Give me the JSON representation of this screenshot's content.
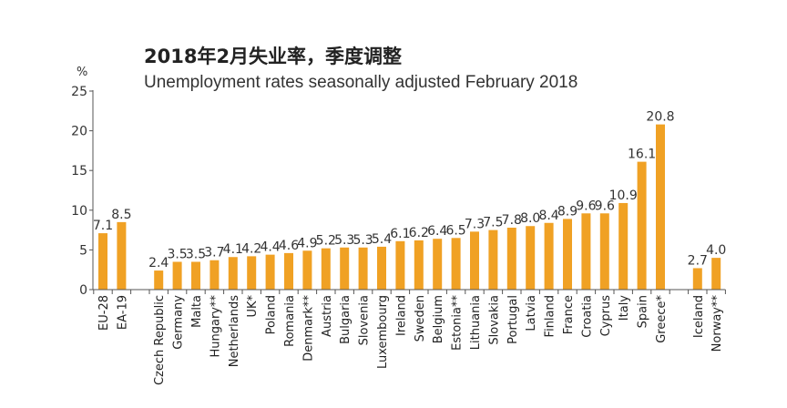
{
  "chart_data": {
    "type": "bar",
    "title": "2018年2月失业率，季度调整",
    "subtitle": "Unemployment rates seasonally adjusted February 2018",
    "ylabel": "%",
    "ylim": [
      0,
      25
    ],
    "yticks": [
      0,
      5,
      10,
      15,
      20,
      25
    ],
    "grid": false,
    "bar_color": "#F0A124",
    "groups": [
      {
        "categories": [
          "EU-28",
          "EA-19"
        ],
        "values": [
          7.1,
          8.5
        ],
        "labels": [
          "7.1",
          "8.5"
        ]
      },
      {
        "categories": [
          "Czech Republic",
          "Germany",
          "Malta",
          "Hungary**",
          "Netherlands",
          "UK*",
          "Poland",
          "Romania",
          "Denmark**",
          "Austria",
          "Bulgaria",
          "Slovenia",
          "Luxembourg",
          "Ireland",
          "Sweden",
          "Belgium",
          "Estonia**",
          "Lithuania",
          "Slovakia",
          "Portugal",
          "Latvia",
          "Finland",
          "France",
          "Croatia",
          "Cyprus",
          "Italy",
          "Spain",
          "Greece*"
        ],
        "values": [
          2.4,
          3.5,
          3.5,
          3.7,
          4.1,
          4.2,
          4.4,
          4.6,
          4.9,
          5.2,
          5.3,
          5.3,
          5.4,
          6.1,
          6.2,
          6.4,
          6.5,
          7.3,
          7.5,
          7.8,
          8.0,
          8.4,
          8.9,
          9.6,
          9.6,
          10.9,
          16.1,
          20.8
        ],
        "labels": [
          "2.4",
          "3.5",
          "3.5",
          "3.7",
          "4.1",
          "4.2",
          "4.4",
          "4.6",
          "4.9",
          "5.2",
          "5.3",
          "5.3",
          "5.4",
          "6.1",
          "6.2",
          "6.4",
          "6.5",
          "7.3",
          "7.5",
          "7.8",
          "8.0",
          "8.4",
          "8.9",
          "9.6",
          "9.6",
          "10.9",
          "16.1",
          "20.8"
        ]
      },
      {
        "categories": [
          "Iceland",
          "Norway**"
        ],
        "values": [
          2.7,
          4.0
        ],
        "labels": [
          "2.7",
          "4.0"
        ]
      }
    ]
  }
}
